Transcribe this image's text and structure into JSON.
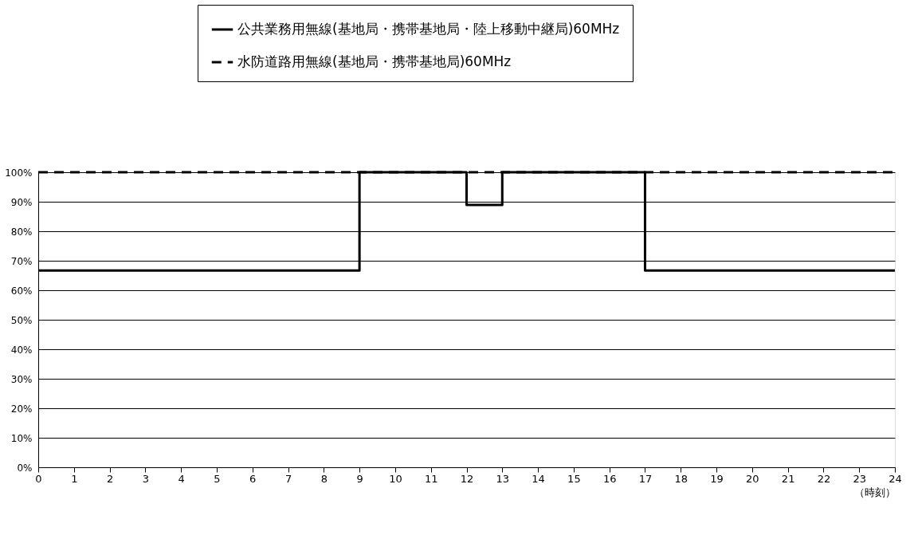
{
  "chart_data": {
    "type": "step",
    "xlabel": "（時刻）",
    "x": [
      0,
      1,
      2,
      3,
      4,
      5,
      6,
      7,
      8,
      9,
      10,
      11,
      12,
      13,
      14,
      15,
      16,
      17,
      18,
      19,
      20,
      21,
      22,
      23,
      24
    ],
    "series": [
      {
        "name": "水防道路用無線(基地局・携帯基地局)60MHz",
        "color": "#000000",
        "line_style": "dashed",
        "values": [
          100,
          100,
          100,
          100,
          100,
          100,
          100,
          100,
          100,
          100,
          100,
          100,
          100,
          100,
          100,
          100,
          100,
          100,
          100,
          100,
          100,
          100,
          100,
          100,
          100
        ]
      },
      {
        "name": "公共業務用無線(基地局・携帯基地局・陸上移動中継局)60MHz",
        "color": "#000000",
        "line_style": "solid",
        "values": [
          66.7,
          66.7,
          66.7,
          66.7,
          66.7,
          66.7,
          66.7,
          66.7,
          66.7,
          100,
          100,
          100,
          88.9,
          100,
          100,
          100,
          100,
          66.7,
          66.7,
          66.7,
          66.7,
          66.7,
          66.7,
          66.7,
          66.7
        ]
      }
    ],
    "xlim": [
      0,
      24
    ],
    "xticks": [
      0,
      1,
      2,
      3,
      4,
      5,
      6,
      7,
      8,
      9,
      10,
      11,
      12,
      13,
      14,
      15,
      16,
      17,
      18,
      19,
      20,
      21,
      22,
      23,
      24
    ],
    "ylim": [
      0,
      100
    ],
    "yticks": [
      {
        "value": 0,
        "label": "0%"
      },
      {
        "value": 10,
        "label": "10%"
      },
      {
        "value": 20,
        "label": "20%"
      },
      {
        "value": 30,
        "label": "30%"
      },
      {
        "value": 40,
        "label": "40%"
      },
      {
        "value": 50,
        "label": "50%"
      },
      {
        "value": 60,
        "label": "60%"
      },
      {
        "value": 70,
        "label": "70%"
      },
      {
        "value": 80,
        "label": "80%"
      },
      {
        "value": 90,
        "label": "90%"
      },
      {
        "value": 100,
        "label": "100%"
      }
    ],
    "grid": "y",
    "legend": "top",
    "marker": "none"
  }
}
